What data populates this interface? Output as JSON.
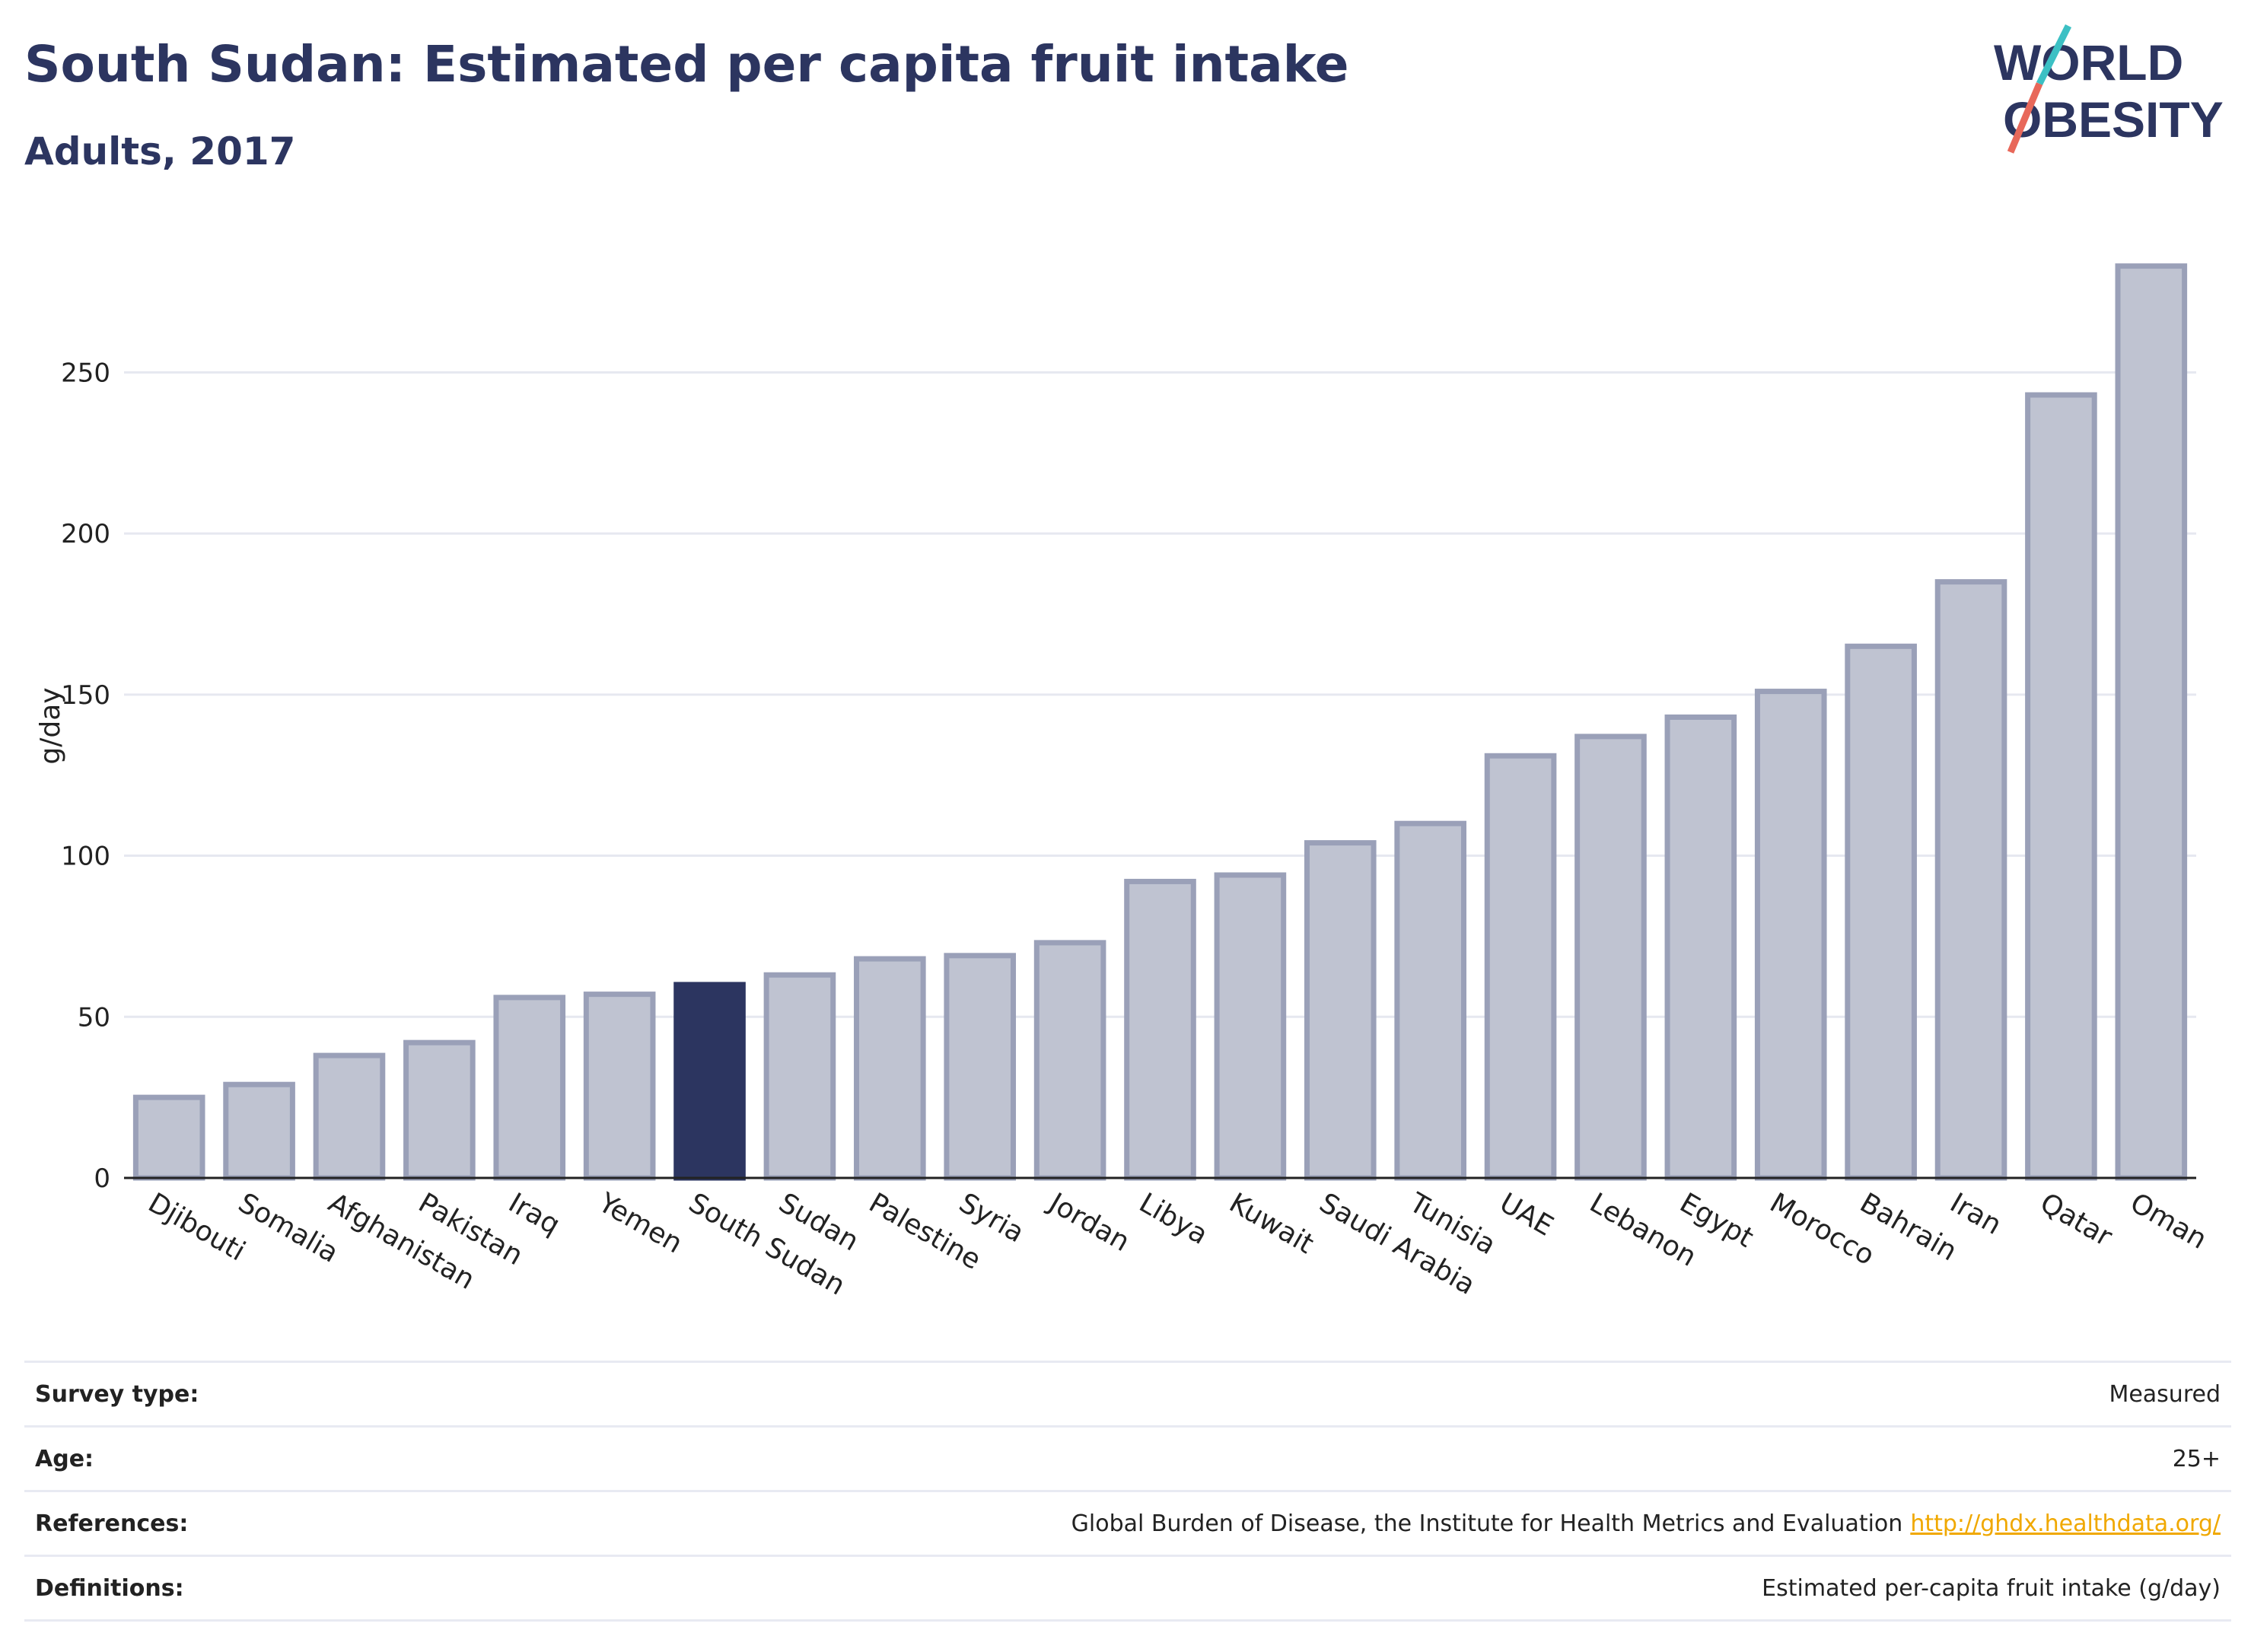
{
  "header": {
    "title": "South Sudan: Estimated per capita fruit intake",
    "subtitle": "Adults, 2017"
  },
  "logo": {
    "line1": "WORLD",
    "line2": "OBESITY"
  },
  "colors": {
    "highlight": "#2c3560",
    "bar_fill": "#bfc3d1",
    "bar_stroke": "#9aa0b8",
    "grid": "#e6e8f0",
    "logo_teal": "#3cc0c4",
    "logo_red": "#e8685a",
    "link": "#f0a800"
  },
  "chart_data": {
    "type": "bar",
    "ylabel": "g/day",
    "xlabel": "",
    "ylim": [
      0,
      290
    ],
    "yticks": [
      0,
      50,
      100,
      150,
      200,
      250
    ],
    "grid": true,
    "highlight": "South Sudan",
    "categories": [
      "Djibouti",
      "Somalia",
      "Afghanistan",
      "Pakistan",
      "Iraq",
      "Yemen",
      "South Sudan",
      "Sudan",
      "Palestine",
      "Syria",
      "Jordan",
      "Libya",
      "Kuwait",
      "Saudi Arabia",
      "Tunisia",
      "UAE",
      "Lebanon",
      "Egypt",
      "Morocco",
      "Bahrain",
      "Iran",
      "Qatar",
      "Oman"
    ],
    "values": [
      25,
      29,
      38,
      42,
      56,
      57,
      60,
      63,
      68,
      69,
      73,
      92,
      94,
      104,
      110,
      131,
      137,
      143,
      151,
      165,
      185,
      243,
      283
    ]
  },
  "info": {
    "rows": [
      {
        "label": "Survey type:",
        "value": "Measured",
        "link": ""
      },
      {
        "label": "Age:",
        "value": "25+",
        "link": ""
      },
      {
        "label": "References:",
        "value": "Global Burden of Disease, the Institute for Health Metrics and Evaluation",
        "link": "http://ghdx.healthdata.org/"
      },
      {
        "label": "Definitions:",
        "value": "Estimated per-capita fruit intake (g/day)",
        "link": ""
      }
    ]
  }
}
